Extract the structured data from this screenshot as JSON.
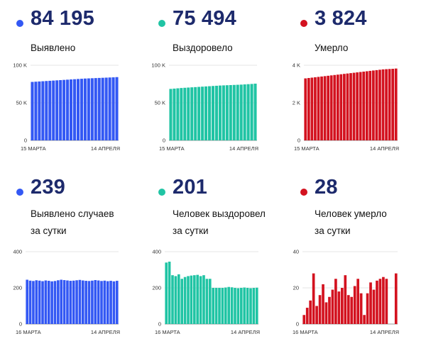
{
  "colors": {
    "blue": "#3358f4",
    "teal": "#20c4a4",
    "red": "#d3121f",
    "number": "#1d2a6c"
  },
  "panels": [
    {
      "number": "84 195",
      "label": [
        "Выявлено"
      ],
      "color": "blue"
    },
    {
      "number": "75 494",
      "label": [
        "Выздоровело"
      ],
      "color": "teal"
    },
    {
      "number": "3 824",
      "label": [
        "Умерло"
      ],
      "color": "red"
    },
    {
      "number": "239",
      "label": [
        "Выявлено случаев",
        "за сутки"
      ],
      "color": "blue"
    },
    {
      "number": "201",
      "label": [
        "Человек выздоровел",
        "за сутки"
      ],
      "color": "teal"
    },
    {
      "number": "28",
      "label": [
        "Человек умерло",
        "за сутки"
      ],
      "color": "red"
    }
  ],
  "chart_data": [
    {
      "type": "bar",
      "xlabel_start": "15 МАРТА",
      "xlabel_end": "14 АПРЕЛЯ",
      "ylim": [
        0,
        100000
      ],
      "yticks": [
        0,
        50000,
        100000
      ],
      "ytick_labels": [
        "0",
        "50 K",
        "100 K"
      ],
      "values": [
        77800,
        78100,
        78400,
        78700,
        79000,
        79300,
        79600,
        79900,
        80200,
        80500,
        80800,
        81100,
        81400,
        81700,
        82000,
        82300,
        82500,
        82700,
        82900,
        83100,
        83300,
        83500,
        83700,
        83900,
        84195
      ]
    },
    {
      "type": "bar",
      "xlabel_start": "15 МАРТА",
      "xlabel_end": "14 АПРЕЛЯ",
      "ylim": [
        0,
        100000
      ],
      "yticks": [
        0,
        50000,
        100000
      ],
      "ytick_labels": [
        "0",
        "50 K",
        "100 K"
      ],
      "values": [
        68500,
        68900,
        69300,
        69700,
        70000,
        70300,
        70600,
        70900,
        71200,
        71500,
        71800,
        72100,
        72400,
        72700,
        73000,
        73200,
        73400,
        73600,
        73800,
        74000,
        74200,
        74500,
        74800,
        75100,
        75494
      ]
    },
    {
      "type": "bar",
      "xlabel_start": "15 МАРТА",
      "xlabel_end": "14 АПРЕЛЯ",
      "ylim": [
        0,
        4000
      ],
      "yticks": [
        0,
        2000,
        4000
      ],
      "ytick_labels": [
        "0",
        "2 K",
        "4 K"
      ],
      "values": [
        3300,
        3320,
        3340,
        3360,
        3380,
        3400,
        3420,
        3440,
        3460,
        3480,
        3500,
        3520,
        3540,
        3560,
        3580,
        3600,
        3620,
        3640,
        3660,
        3680,
        3700,
        3720,
        3740,
        3760,
        3780,
        3790,
        3800,
        3810,
        3824
      ]
    },
    {
      "type": "bar",
      "xlabel_start": "16 МАРТА",
      "xlabel_end": "14 АПРЕЛЯ",
      "ylim": [
        0,
        400
      ],
      "yticks": [
        0,
        200,
        400
      ],
      "ytick_labels": [
        "0",
        "200",
        "400"
      ],
      "values": [
        245,
        240,
        238,
        242,
        240,
        237,
        241,
        239,
        236,
        238,
        242,
        245,
        243,
        241,
        239,
        240,
        242,
        244,
        241,
        239,
        238,
        240,
        243,
        241,
        238,
        240,
        237,
        239,
        236,
        239
      ]
    },
    {
      "type": "bar",
      "xlabel_start": "16 МАРТА",
      "xlabel_end": "14 АПРЕЛЯ",
      "ylim": [
        0,
        400
      ],
      "yticks": [
        0,
        200,
        400
      ],
      "ytick_labels": [
        "0",
        "200",
        "400"
      ],
      "values": [
        340,
        345,
        270,
        265,
        275,
        250,
        260,
        265,
        268,
        270,
        272,
        265,
        270,
        250,
        250,
        200,
        200,
        200,
        200,
        202,
        205,
        203,
        200,
        198,
        200,
        202,
        200,
        198,
        200,
        201
      ]
    },
    {
      "type": "bar",
      "xlabel_start": "16 МАРТА",
      "xlabel_end": "14 АПРЕЛЯ",
      "ylim": [
        0,
        40
      ],
      "yticks": [
        0,
        20,
        40
      ],
      "ytick_labels": [
        "0",
        "20",
        "40"
      ],
      "values": [
        5,
        9,
        13,
        28,
        10,
        16,
        22,
        12,
        15,
        19,
        25,
        18,
        20,
        27,
        16,
        15,
        21,
        25,
        17,
        5,
        17,
        23,
        19,
        24,
        25,
        26,
        25,
        null,
        null,
        28
      ]
    }
  ]
}
